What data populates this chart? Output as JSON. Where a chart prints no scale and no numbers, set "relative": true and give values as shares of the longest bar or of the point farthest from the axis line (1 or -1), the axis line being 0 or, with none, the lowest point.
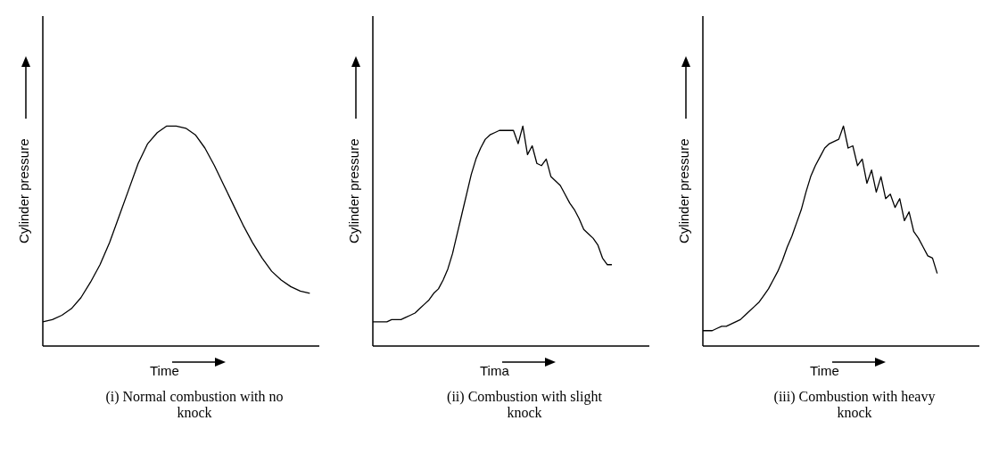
{
  "chart_data": [
    {
      "type": "line",
      "title": "(i) Normal combustion with no knock",
      "xlabel": "Time",
      "ylabel": "Cylinder pressure",
      "relative": true,
      "marker": "none",
      "line_style": "solid",
      "categories": [
        null,
        null,
        null,
        null,
        null,
        null,
        null,
        null,
        null,
        null,
        null,
        null,
        null,
        null,
        null,
        null,
        null,
        null,
        null,
        null,
        null,
        null,
        null,
        null,
        null,
        null,
        null,
        null,
        null,
        null
      ],
      "series": [
        {
          "color": "#000000",
          "values": [
            0.11,
            0.12,
            0.14,
            0.17,
            0.22,
            0.29,
            0.37,
            0.47,
            0.59,
            0.71,
            0.83,
            0.92,
            0.97,
            1.0,
            1.0,
            0.99,
            0.96,
            0.9,
            0.82,
            0.73,
            0.64,
            0.55,
            0.47,
            0.4,
            0.34,
            0.3,
            0.27,
            0.25,
            0.24,
            null
          ]
        }
      ]
    },
    {
      "type": "line",
      "title": "(ii) Combustion with slight knock",
      "xlabel": "Tima",
      "ylabel": "Cylinder pressure",
      "relative": true,
      "marker": "none",
      "line_style": "solid",
      "categories": [
        null,
        null,
        null,
        null,
        null,
        null,
        null,
        null,
        null,
        null,
        null,
        null,
        null,
        null,
        null,
        null,
        null,
        null,
        null,
        null,
        null,
        null,
        null,
        null,
        null,
        null,
        null,
        null,
        null,
        null,
        null,
        null,
        null,
        null,
        null,
        null,
        null,
        null,
        null,
        null,
        null,
        null,
        null,
        null,
        null,
        null,
        null,
        null,
        null,
        null,
        null,
        null,
        null,
        null,
        null,
        null,
        null,
        null,
        null,
        null
      ],
      "series": [
        {
          "color": "#000000",
          "values": [
            0.11,
            0.11,
            0.11,
            0.11,
            0.12,
            0.12,
            0.12,
            0.13,
            0.14,
            0.15,
            0.17,
            0.19,
            0.21,
            0.24,
            0.26,
            0.3,
            0.35,
            0.42,
            0.51,
            0.6,
            0.69,
            0.78,
            0.85,
            0.9,
            0.94,
            0.96,
            0.97,
            0.98,
            0.98,
            0.98,
            0.98,
            0.92,
            1.0,
            0.87,
            0.91,
            0.83,
            0.82,
            0.85,
            0.77,
            0.75,
            0.73,
            0.69,
            0.65,
            0.62,
            0.58,
            0.53,
            0.51,
            0.49,
            0.46,
            0.4,
            0.37,
            0.37,
            null,
            null,
            null,
            null,
            null,
            null,
            null,
            null
          ]
        }
      ]
    },
    {
      "type": "line",
      "title": "(iii) Combustion with heavy knock",
      "xlabel": "Time",
      "ylabel": "Cylinder pressure",
      "relative": true,
      "marker": "none",
      "line_style": "solid",
      "categories": [
        null,
        null,
        null,
        null,
        null,
        null,
        null,
        null,
        null,
        null,
        null,
        null,
        null,
        null,
        null,
        null,
        null,
        null,
        null,
        null,
        null,
        null,
        null,
        null,
        null,
        null,
        null,
        null,
        null,
        null,
        null,
        null,
        null,
        null,
        null,
        null,
        null,
        null,
        null,
        null,
        null,
        null,
        null,
        null,
        null,
        null,
        null,
        null,
        null,
        null,
        null,
        null,
        null,
        null,
        null,
        null,
        null,
        null,
        null,
        null
      ],
      "series": [
        {
          "color": "#000000",
          "values": [
            0.07,
            0.07,
            0.07,
            0.08,
            0.09,
            0.09,
            0.1,
            0.11,
            0.12,
            0.14,
            0.16,
            0.18,
            0.2,
            0.23,
            0.26,
            0.3,
            0.34,
            0.39,
            0.45,
            0.5,
            0.56,
            0.62,
            0.7,
            0.77,
            0.82,
            0.86,
            0.9,
            0.92,
            0.93,
            0.94,
            1.0,
            0.9,
            0.91,
            0.82,
            0.85,
            0.74,
            0.8,
            0.7,
            0.77,
            0.67,
            0.69,
            0.63,
            0.67,
            0.57,
            0.61,
            0.52,
            0.49,
            0.45,
            0.41,
            0.4,
            0.33,
            null,
            null,
            null,
            null,
            null,
            null,
            null,
            null,
            null
          ]
        }
      ]
    }
  ]
}
